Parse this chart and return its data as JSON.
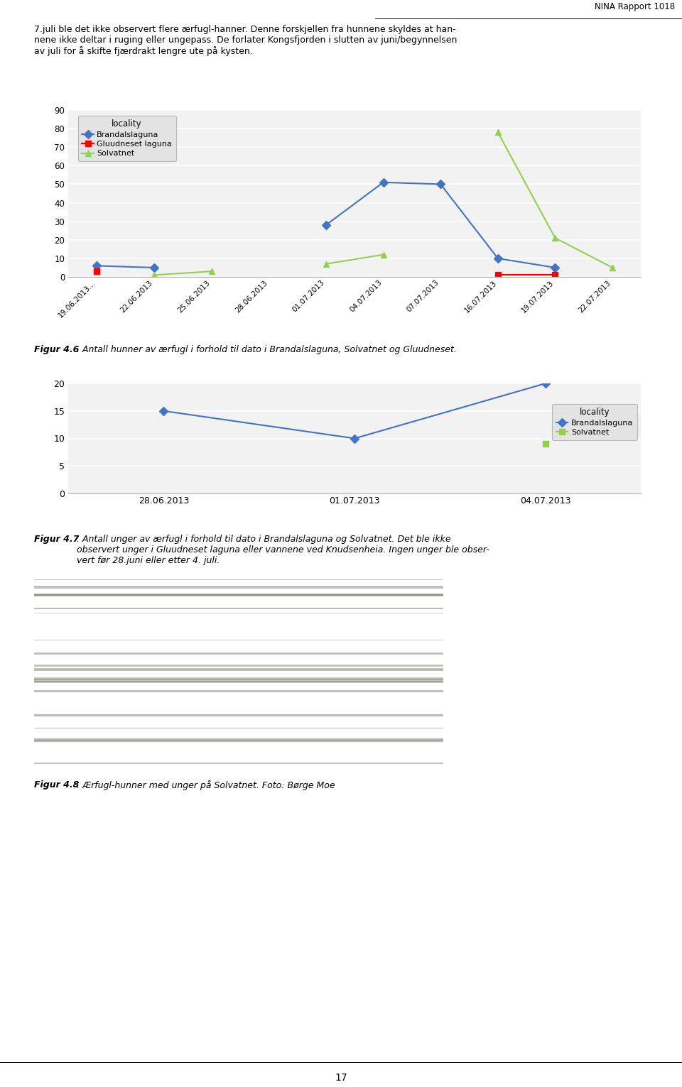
{
  "page_bg": "#ffffff",
  "header_text": "NINA Rapport 1018",
  "body_text_1": "7.juli ble det ikke observert flere ærfugl-hanner. Denne forskjellen fra hunnene skyldes at han-\nnene ikke deltar i ruging eller ungepass. De forlater Kongsfjorden i slutten av juni/begynnelsen\nav juli for å skifte fjærdrakt lengre ute på kysten.",
  "chart1": {
    "ylim": [
      0,
      90
    ],
    "yticks": [
      0,
      10,
      20,
      30,
      40,
      50,
      60,
      70,
      80,
      90
    ],
    "dates": [
      "19.06.2013...",
      "22.06.2013",
      "25.06.2013",
      "28.06.2013",
      "01.07.2013",
      "04.07.2013",
      "07.07.2013",
      "16.07.2013",
      "19.07.2013",
      "22.07.2013"
    ],
    "brandalslaguna": [
      6,
      5,
      null,
      null,
      28,
      51,
      50,
      10,
      5,
      null
    ],
    "gluudneset": [
      3,
      null,
      null,
      null,
      null,
      null,
      null,
      1,
      1,
      null
    ],
    "solvatnet": [
      null,
      1,
      3,
      null,
      7,
      12,
      null,
      78,
      21,
      5
    ],
    "legend_title": "locality",
    "series_labels": [
      "Brandalslaguna",
      "Gluudneset laguna",
      "Solvatnet"
    ],
    "colors": [
      "#4472C4",
      "#FF0000",
      "#92D050"
    ],
    "markers": [
      "D",
      "s",
      "^"
    ]
  },
  "fig46_caption_bold": "Figur 4.6",
  "fig46_caption_rest": ". Antall hunner av ærfugl i forhold til dato i Brandalslaguna, Solvatnet og Gluudneset.",
  "chart2": {
    "ylim": [
      0,
      20
    ],
    "yticks": [
      0,
      5,
      10,
      15,
      20
    ],
    "dates": [
      "28.06.2013",
      "01.07.2013",
      "04.07.2013"
    ],
    "brandalslaguna": [
      15,
      10,
      20
    ],
    "solvatnet": [
      null,
      null,
      9
    ],
    "legend_title": "locality",
    "series_labels": [
      "Brandalslaguna",
      "Solvatnet"
    ],
    "colors": [
      "#4472C4",
      "#92D050"
    ],
    "markers": [
      "D",
      "s"
    ]
  },
  "fig47_caption_bold": "Figur 4.7",
  "fig47_caption_rest": ". Antall unger av ærfugl i forhold til dato i Brandalslaguna og Solvatnet. Det ble ikke\nobservert unger i Gluudneset laguna eller vannene ved Knudsenheia. Ingen unger ble obser-\nvert før 28.juni eller etter 4. juli.",
  "fig48_caption_bold": "Figur 4.8",
  "fig48_caption_rest": ". Ærfugl-hunner med unger på Solvatnet. Foto: Børge Moe",
  "page_number": "17"
}
